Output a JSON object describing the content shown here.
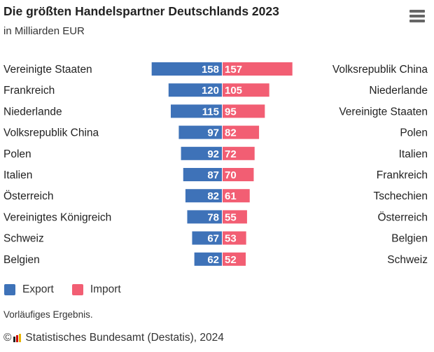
{
  "header": {
    "title": "Die größten Handelspartner Deutschlands 2023",
    "subtitle": "in Milliarden EUR",
    "menu_icon": "hamburger-menu-icon"
  },
  "colors": {
    "export": "#3e72b8",
    "import": "#f25e73"
  },
  "chart_data": {
    "type": "bar",
    "orientation": "horizontal-diverging",
    "title": "Die größten Handelspartner Deutschlands 2023",
    "subtitle": "in Milliarden EUR",
    "unit": "Mrd. EUR",
    "series": [
      {
        "name": "Export",
        "categories": [
          "Vereinigte Staaten",
          "Frankreich",
          "Niederlande",
          "Volksrepublik China",
          "Polen",
          "Italien",
          "Österreich",
          "Vereinigtes Königreich",
          "Schweiz",
          "Belgien"
        ],
        "values": [
          158,
          120,
          115,
          97,
          92,
          87,
          82,
          78,
          67,
          62
        ]
      },
      {
        "name": "Import",
        "categories": [
          "Volksrepublik China",
          "Niederlande",
          "Vereinigte Staaten",
          "Polen",
          "Italien",
          "Frankreich",
          "Tschechien",
          "Österreich",
          "Belgien",
          "Schweiz"
        ],
        "values": [
          157,
          105,
          95,
          82,
          72,
          70,
          61,
          55,
          53,
          52
        ]
      }
    ],
    "legend": {
      "position": "bottom-left",
      "entries": [
        "Export",
        "Import"
      ]
    },
    "grid": false
  },
  "footer": {
    "note": "Vorläufiges Ergebnis.",
    "copyright_symbol": "©",
    "credits": "Statistisches Bundesamt (Destatis), 2024"
  }
}
